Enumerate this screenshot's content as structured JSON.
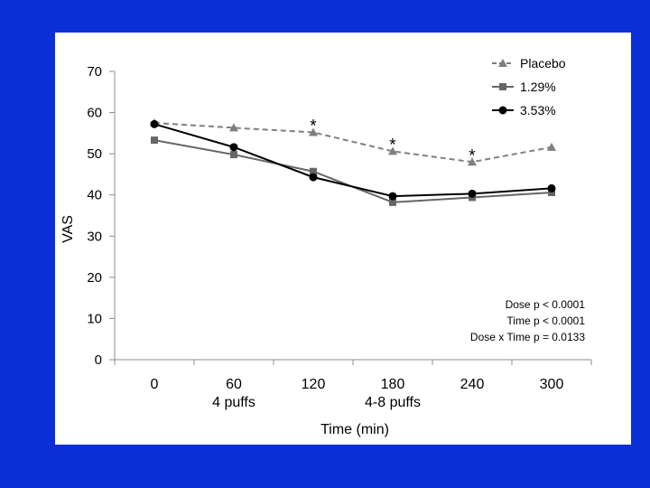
{
  "chart_data": {
    "type": "line",
    "title": "",
    "xlabel": "Time (min)",
    "ylabel": "VAS",
    "categories": [
      "0",
      "60",
      "120",
      "180",
      "240",
      "300"
    ],
    "category_sublabels": [
      "",
      "4 puffs",
      "",
      "4-8 puffs",
      "",
      ""
    ],
    "ylim": [
      0,
      70
    ],
    "yticks": [
      "0",
      "10",
      "20",
      "30",
      "40",
      "50",
      "60",
      "70"
    ],
    "series": [
      {
        "name": "Placebo",
        "values": [
          57.5,
          56.3,
          55.2,
          50.6,
          48.0,
          51.6
        ],
        "color": "#7f7f7f",
        "dash": true,
        "marker": "triangle"
      },
      {
        "name": "1.29%",
        "values": [
          53.3,
          49.8,
          45.7,
          38.2,
          39.4,
          40.6
        ],
        "color": "#666666",
        "dash": false,
        "marker": "square"
      },
      {
        "name": "3.53%",
        "values": [
          57.2,
          51.6,
          44.3,
          39.7,
          40.3,
          41.6
        ],
        "color": "#000000",
        "dash": false,
        "marker": "circle"
      }
    ],
    "significance": [
      {
        "category_index": 2,
        "label": "*",
        "value": 55.2
      },
      {
        "category_index": 3,
        "label": "*",
        "value": 50.6
      },
      {
        "category_index": 4,
        "label": "*",
        "value": 48.0
      }
    ],
    "annotations": [
      "Dose p < 0.0001",
      "Time p < 0.0001",
      "Dose x Time p = 0.0133"
    ],
    "legend_position": "top-right"
  },
  "colors": {
    "background": "#0a2fd6",
    "slide": "#ffffff",
    "axis": "#8c8c8c"
  }
}
